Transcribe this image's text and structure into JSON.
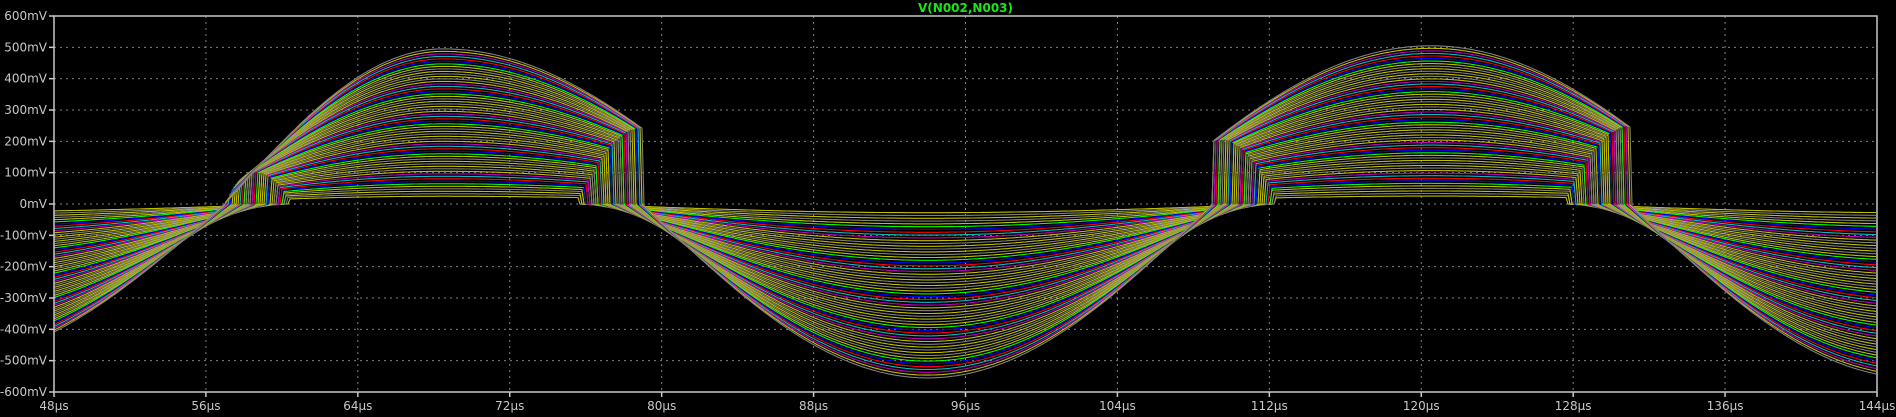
{
  "chart_data": {
    "type": "line",
    "title": "V(N002,N003)",
    "title_color": "#19E619",
    "background_color": "#000000",
    "axis_color": "#C8C8C8",
    "grid": true,
    "grid_color": "#808080",
    "grid_style": "dotted",
    "x_unit": "µs",
    "y_unit": "mV",
    "xlim": [
      48,
      144
    ],
    "ylim": [
      -600,
      600
    ],
    "x_ticks": [
      "48µs",
      "56µs",
      "64µs",
      "72µs",
      "80µs",
      "88µs",
      "96µs",
      "104µs",
      "112µs",
      "120µs",
      "128µs",
      "136µs",
      "144µs"
    ],
    "x_tick_values": [
      48,
      56,
      64,
      72,
      80,
      88,
      96,
      104,
      112,
      120,
      128,
      136,
      144
    ],
    "y_ticks": [
      "600mV",
      "500mV",
      "400mV",
      "300mV",
      "200mV",
      "100mV",
      "0mV",
      "-100mV",
      "-200mV",
      "-300mV",
      "-400mV",
      "-500mV",
      "-600mV"
    ],
    "y_tick_values": [
      600,
      500,
      400,
      300,
      200,
      100,
      0,
      -100,
      -200,
      -300,
      -400,
      -500,
      -600
    ],
    "family": {
      "description_of_signal": "half-wave rectified sine family, period 52µs",
      "period_us": 52,
      "positive_lobes": [
        {
          "start_us": 57,
          "end_us": 84,
          "peak_us": 68.5,
          "peak_mV": 495
        },
        {
          "start_us": 105,
          "end_us": 136,
          "peak_us": 120.5,
          "peak_mV": 505
        }
      ],
      "negative_lobes": [
        {
          "start_us": 27,
          "end_us": 57,
          "trough_us": 42,
          "trough_mV": -505
        },
        {
          "start_us": 79,
          "end_us": 109,
          "trough_us": 94,
          "trough_mV": -555
        },
        {
          "start_us": 131,
          "end_us": 161,
          "trough_us": 146,
          "trough_mV": -555
        }
      ],
      "trace_count": 60,
      "min_scale": 0.05,
      "max_scale": 1.0,
      "colors": [
        "#BFBF00",
        "#808080",
        "#BFBF00",
        "#808080",
        "#BFBF00",
        "#00FF00",
        "#0000FF",
        "#FF0000",
        "#00BFBF",
        "#BF00BF",
        "#BFBF00",
        "#808080"
      ]
    }
  }
}
